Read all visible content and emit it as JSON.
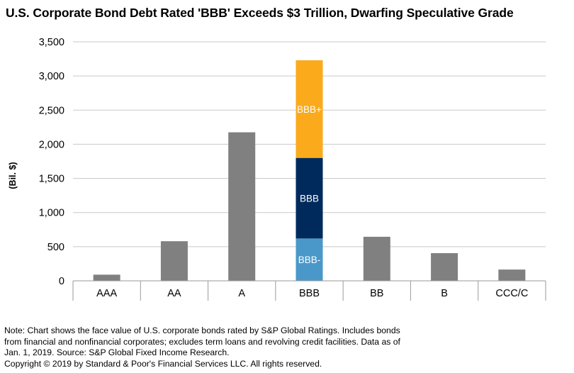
{
  "chart_data": {
    "type": "bar",
    "title": "U.S. Corporate Bond Debt Rated 'BBB' Exceeds $3 Trillion, Dwarfing Speculative Grade",
    "ylabel": "(Bil. $)",
    "xlabel": "",
    "ylim": [
      0,
      3500
    ],
    "yticks": [
      0,
      500,
      1000,
      1500,
      2000,
      2500,
      3000,
      3500
    ],
    "ytick_labels": [
      "0",
      "500",
      "1,000",
      "1,500",
      "2,000",
      "2,500",
      "3,000",
      "3,500"
    ],
    "grid": true,
    "categories": [
      "AAA",
      "AA",
      "A",
      "BBB",
      "BB",
      "B",
      "CCC/C"
    ],
    "values": [
      90,
      580,
      2175,
      null,
      645,
      405,
      165
    ],
    "stacked_category": "BBB",
    "stacked_segments": [
      {
        "name": "BBB-",
        "value": 620,
        "color": "#4a98c9"
      },
      {
        "name": "BBB",
        "value": 1180,
        "color": "#002a5c"
      },
      {
        "name": "BBB+",
        "value": 1430,
        "color": "#fbaa1b"
      }
    ],
    "bar_color": "#808080"
  },
  "notes": {
    "line1": "Note: Chart shows the face value of U.S. corporate bonds rated by S&P Global Ratings. Includes bonds",
    "line2": "from financial and nonfinancial corporates; excludes term loans and revolving credit facilities. Data as of",
    "line3": "Jan. 1, 2019. Source: S&P Global Fixed Income Research.",
    "copyright": "Copyright © 2019 by Standard & Poor's Financial Services LLC. All rights reserved."
  }
}
